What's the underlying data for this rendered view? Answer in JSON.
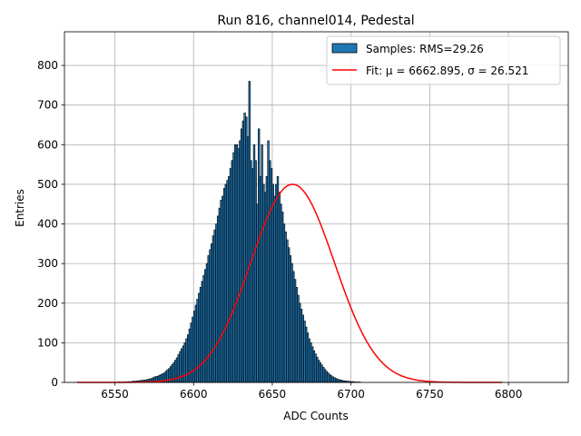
{
  "chart_data": {
    "type": "bar",
    "title": "Run 816, channel014, Pedestal",
    "xlabel": "ADC Counts",
    "ylabel": "Entries",
    "xlim": [
      6518,
      6838
    ],
    "ylim": [
      0,
      885
    ],
    "xticks": [
      6550,
      6600,
      6650,
      6700,
      6750,
      6800
    ],
    "yticks": [
      0,
      100,
      200,
      300,
      400,
      500,
      600,
      700,
      800
    ],
    "grid": true,
    "legend_position": "top-right",
    "histogram": {
      "label": "Samples: RMS=29.26",
      "color": "#1f77b4",
      "bin_width": 1,
      "x_start": 6526,
      "values": [
        0,
        0,
        0,
        0,
        0,
        0,
        0,
        0,
        0,
        0,
        0,
        0,
        0,
        0,
        0,
        0,
        0,
        0,
        0,
        0,
        0,
        0,
        0,
        0,
        0,
        0,
        1,
        1,
        0,
        1,
        1,
        1,
        2,
        2,
        2,
        3,
        3,
        3,
        4,
        4,
        5,
        5,
        6,
        6,
        7,
        8,
        9,
        10,
        12,
        14,
        15,
        16,
        18,
        20,
        22,
        24,
        28,
        32,
        35,
        40,
        45,
        50,
        56,
        62,
        70,
        78,
        85,
        92,
        100,
        110,
        120,
        135,
        150,
        165,
        180,
        195,
        210,
        225,
        240,
        255,
        270,
        285,
        300,
        320,
        335,
        350,
        370,
        385,
        400,
        420,
        440,
        460,
        470,
        490,
        500,
        510,
        520,
        540,
        560,
        580,
        600,
        600,
        590,
        610,
        640,
        660,
        680,
        670,
        620,
        760,
        560,
        540,
        600,
        560,
        450,
        640,
        520,
        600,
        500,
        480,
        520,
        610,
        560,
        540,
        500,
        470,
        500,
        520,
        480,
        450,
        430,
        400,
        380,
        360,
        340,
        320,
        300,
        280,
        260,
        240,
        220,
        200,
        185,
        170,
        155,
        140,
        125,
        110,
        100,
        90,
        80,
        72,
        64,
        56,
        50,
        44,
        38,
        33,
        28,
        24,
        20,
        17,
        14,
        12,
        10,
        8,
        7,
        6,
        5,
        4,
        4,
        3,
        3,
        2,
        2,
        2,
        1,
        1,
        1,
        1,
        0,
        0,
        0,
        0,
        0,
        0,
        0,
        0,
        0,
        0,
        0,
        0,
        0,
        0,
        0,
        0,
        0,
        0,
        0,
        0,
        0,
        0,
        0,
        0,
        0,
        0,
        0,
        0,
        0,
        0,
        0,
        0,
        0,
        0,
        0,
        0,
        0,
        0,
        0,
        0,
        0,
        0,
        0,
        0,
        0,
        0,
        0,
        0,
        0,
        0,
        0,
        0,
        0,
        0,
        0,
        0,
        0,
        0,
        0,
        0,
        0,
        0,
        0,
        0,
        0,
        0,
        0,
        0,
        0,
        0,
        0,
        0,
        0,
        0,
        0,
        0,
        0,
        0,
        0,
        0,
        0,
        0,
        0,
        0,
        0,
        0,
        0,
        0,
        0,
        0,
        0,
        0,
        0,
        0,
        0,
        0,
        0,
        0,
        0,
        0,
        0,
        0,
        0,
        0,
        0,
        0,
        0,
        0,
        0,
        0,
        0,
        0
      ]
    },
    "fit": {
      "label": "Fit: μ = 6662.895, σ = 26.521",
      "color": "#ff0000",
      "mu": 6662.895,
      "sigma": 26.521,
      "amplitude": 500,
      "x_range": [
        6526,
        6796
      ]
    }
  }
}
